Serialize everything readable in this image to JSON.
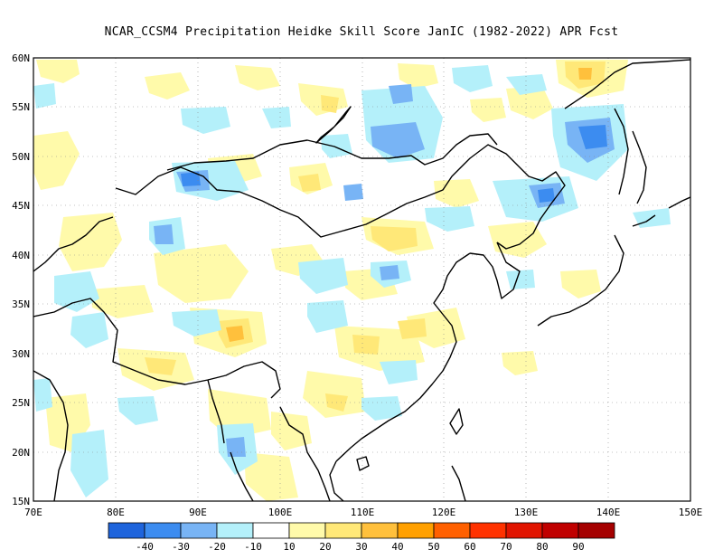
{
  "title": "NCAR_CCSM4  Precipitation Heidke Skill Score JanIC (1982-2022) APR Fcst",
  "lat_labels": [
    "60N",
    "55N",
    "50N",
    "45N",
    "40N",
    "35N",
    "30N",
    "25N",
    "20N",
    "15N"
  ],
  "lon_labels": [
    "70E",
    "80E",
    "90E",
    "100E",
    "110E",
    "120E",
    "130E",
    "140E",
    "150E"
  ],
  "map_extent": {
    "lon": [
      70,
      150
    ],
    "lat": [
      15,
      60
    ]
  },
  "colorbar": {
    "labels": [
      "-40",
      "-30",
      "-20",
      "-10",
      "10",
      "20",
      "30",
      "40",
      "50",
      "60",
      "70",
      "80",
      "90"
    ],
    "colors": [
      "#1e64dc",
      "#3c8cf0",
      "#78b4f5",
      "#b4f0fa",
      "#ffffff",
      "#fffaaa",
      "#ffe878",
      "#ffc03c",
      "#ffa000",
      "#ff6000",
      "#ff3200",
      "#e11400",
      "#c00000",
      "#a50000"
    ]
  }
}
